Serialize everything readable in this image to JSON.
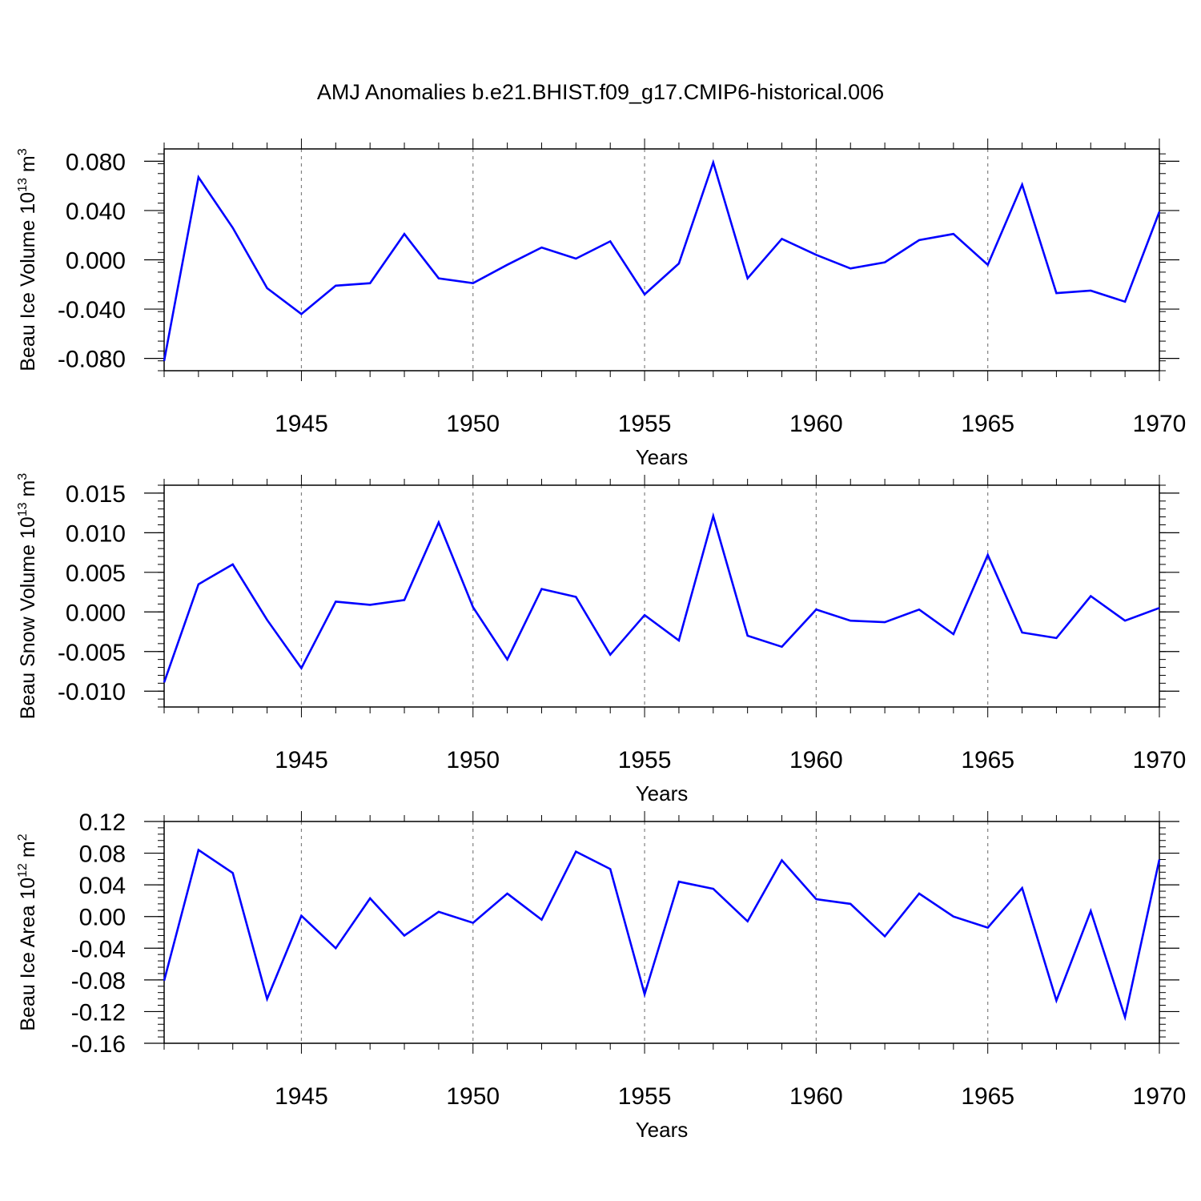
{
  "title": "AMJ Anomalies b.e21.BHIST.f09_g17.CMIP6-historical.006",
  "colors": {
    "line": "#0000ff",
    "axis": "#000000",
    "grid": "#808080"
  },
  "chart_data": [
    {
      "type": "line",
      "ylabel_main": "Beau Ice Volume 10",
      "ylabel_exp1": "13",
      "ylabel_unit": " m",
      "ylabel_exp2": "3",
      "xlabel": "Years",
      "xlim": [
        1941,
        1970
      ],
      "ylim": [
        -0.09,
        0.09
      ],
      "x_ticks": [
        1945,
        1950,
        1955,
        1960,
        1965,
        1970
      ],
      "x_tick_labels": [
        "1945",
        "1950",
        "1955",
        "1960",
        "1965",
        "1970"
      ],
      "y_ticks": [
        -0.08,
        -0.04,
        0.0,
        0.04,
        0.08
      ],
      "y_tick_labels": [
        "-0.080",
        "-0.040",
        "0.000",
        "0.040",
        "0.080"
      ],
      "y_minor_step": 0.008,
      "vgrid": [
        1945,
        1950,
        1955,
        1960,
        1965
      ],
      "x": [
        1941,
        1942,
        1943,
        1944,
        1945,
        1946,
        1947,
        1948,
        1949,
        1950,
        1951,
        1952,
        1953,
        1954,
        1955,
        1956,
        1957,
        1958,
        1959,
        1960,
        1961,
        1962,
        1963,
        1964,
        1965,
        1966,
        1967,
        1968,
        1969,
        1970
      ],
      "values": [
        -0.082,
        0.067,
        0.026,
        -0.023,
        -0.044,
        -0.021,
        -0.019,
        0.021,
        -0.015,
        -0.019,
        -0.004,
        0.01,
        0.001,
        0.015,
        -0.028,
        -0.003,
        0.079,
        -0.015,
        0.017,
        0.004,
        -0.007,
        -0.002,
        0.016,
        0.021,
        -0.004,
        0.061,
        -0.027,
        -0.025,
        -0.034,
        0.039
      ]
    },
    {
      "type": "line",
      "ylabel_main": "Beau Snow Volume 10",
      "ylabel_exp1": "13",
      "ylabel_unit": " m",
      "ylabel_exp2": "3",
      "xlabel": "Years",
      "xlim": [
        1941,
        1970
      ],
      "ylim": [
        -0.012,
        0.016
      ],
      "x_ticks": [
        1945,
        1950,
        1955,
        1960,
        1965,
        1970
      ],
      "x_tick_labels": [
        "1945",
        "1950",
        "1955",
        "1960",
        "1965",
        "1970"
      ],
      "y_ticks": [
        -0.01,
        -0.005,
        0.0,
        0.005,
        0.01,
        0.015
      ],
      "y_tick_labels": [
        "-0.010",
        "-0.005",
        "0.000",
        "0.005",
        "0.010",
        "0.015"
      ],
      "y_minor_step": 0.001,
      "vgrid": [
        1945,
        1950,
        1955,
        1960,
        1965
      ],
      "x": [
        1941,
        1942,
        1943,
        1944,
        1945,
        1946,
        1947,
        1948,
        1949,
        1950,
        1951,
        1952,
        1953,
        1954,
        1955,
        1956,
        1957,
        1958,
        1959,
        1960,
        1961,
        1962,
        1963,
        1964,
        1965,
        1966,
        1967,
        1968,
        1969,
        1970
      ],
      "values": [
        -0.0089,
        0.0035,
        0.006,
        -0.001,
        -0.0071,
        0.0013,
        0.0009,
        0.0015,
        0.0113,
        0.0006,
        -0.006,
        0.0029,
        0.0019,
        -0.0054,
        -0.0004,
        -0.0036,
        0.0121,
        -0.003,
        -0.0044,
        0.0003,
        -0.0011,
        -0.0013,
        0.0003,
        -0.0028,
        0.0072,
        -0.0026,
        -0.0033,
        0.002,
        -0.0011,
        0.0005
      ]
    },
    {
      "type": "line",
      "ylabel_main": "Beau Ice Area 10",
      "ylabel_exp1": "12",
      "ylabel_unit": " m",
      "ylabel_exp2": "2",
      "xlabel": "Years",
      "xlim": [
        1941,
        1970
      ],
      "ylim": [
        -0.16,
        0.12
      ],
      "x_ticks": [
        1945,
        1950,
        1955,
        1960,
        1965,
        1970
      ],
      "x_tick_labels": [
        "1945",
        "1950",
        "1955",
        "1960",
        "1965",
        "1970"
      ],
      "y_ticks": [
        -0.16,
        -0.12,
        -0.08,
        -0.04,
        0.0,
        0.04,
        0.08,
        0.12
      ],
      "y_tick_labels": [
        "-0.16",
        "-0.12",
        "-0.08",
        "-0.04",
        "0.00",
        "0.04",
        "0.08",
        "0.12"
      ],
      "y_minor_step": 0.008,
      "vgrid": [
        1945,
        1950,
        1955,
        1960,
        1965
      ],
      "x": [
        1941,
        1942,
        1943,
        1944,
        1945,
        1946,
        1947,
        1948,
        1949,
        1950,
        1951,
        1952,
        1953,
        1954,
        1955,
        1956,
        1957,
        1958,
        1959,
        1960,
        1961,
        1962,
        1963,
        1964,
        1965,
        1966,
        1967,
        1968,
        1969,
        1970
      ],
      "values": [
        -0.081,
        0.084,
        0.055,
        -0.104,
        0.001,
        -0.04,
        0.023,
        -0.024,
        0.006,
        -0.008,
        0.029,
        -0.004,
        0.082,
        0.06,
        -0.098,
        0.044,
        0.035,
        -0.006,
        0.071,
        0.022,
        0.016,
        -0.025,
        0.029,
        0.0,
        -0.014,
        0.036,
        -0.106,
        0.007,
        -0.127,
        0.072
      ]
    }
  ]
}
